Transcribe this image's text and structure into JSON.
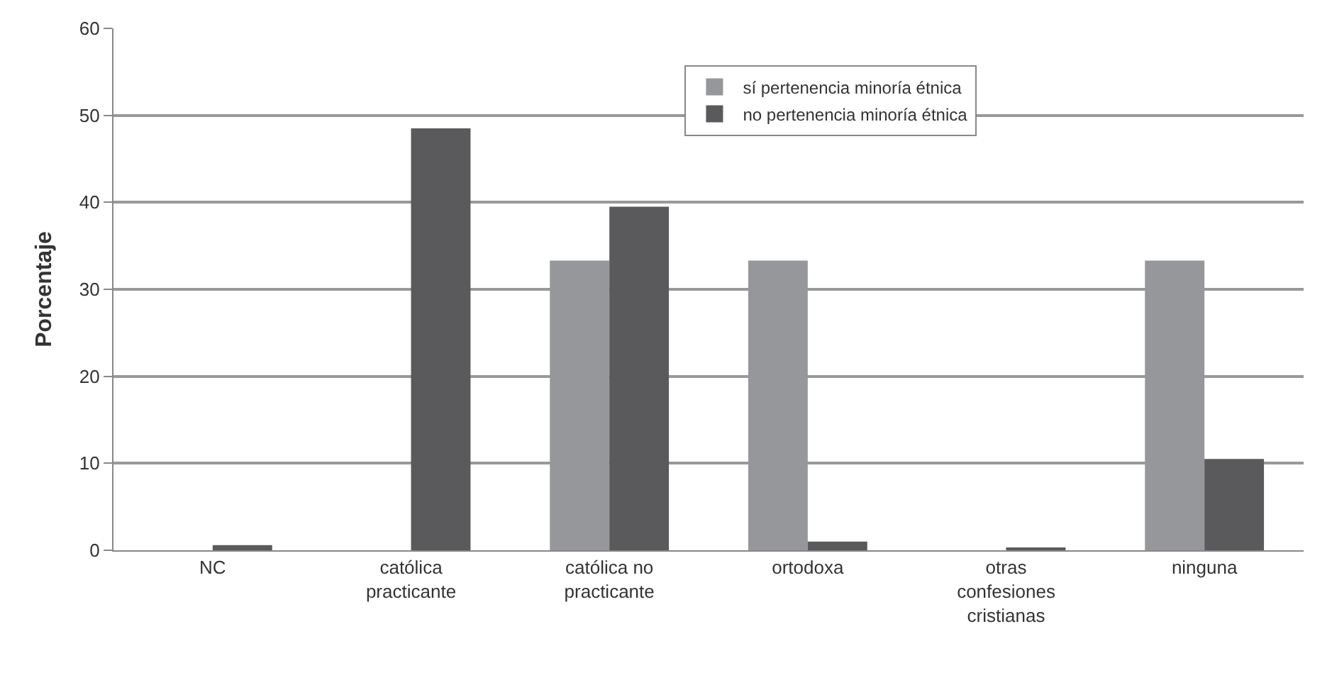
{
  "chart_data": {
    "type": "bar",
    "ylabel": "Porcentaje",
    "categories": [
      "NC",
      "católica\npracticante",
      "católica no\npracticante",
      "ortodoxa",
      "otras\nconfesiones\ncristianas",
      "ninguna"
    ],
    "series": [
      {
        "name": "sí pertenencia minoría étnica",
        "color": "#96979b",
        "values": [
          0,
          0,
          33.3,
          33.3,
          0,
          33.3
        ]
      },
      {
        "name": "no pertenencia minoría étnica",
        "color": "#5a5a5c",
        "values": [
          0.6,
          48.5,
          39.5,
          1.0,
          0.2,
          10.5
        ]
      }
    ],
    "ylim": [
      0,
      60
    ],
    "yticks": [
      0,
      10,
      20,
      30,
      40,
      50,
      60
    ],
    "grid": "y",
    "legend": "top"
  }
}
